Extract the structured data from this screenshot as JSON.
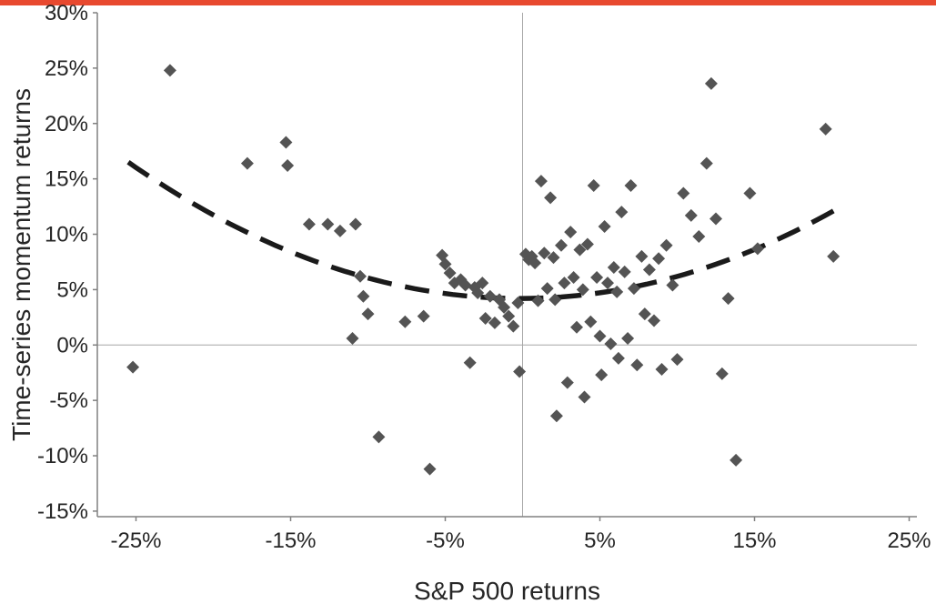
{
  "colors": {
    "accent_bar": "#e8492f",
    "marker": "#545454",
    "trend": "#1a1a1a",
    "axis": "#808080",
    "gridline": "#a6a6a6",
    "text": "#262626"
  },
  "chart_data": {
    "type": "scatter",
    "title": "",
    "xlabel": "S&P 500 returns",
    "ylabel": "Time-series momentum returns",
    "xlim": [
      -27.5,
      25.5
    ],
    "ylim": [
      -15.5,
      30
    ],
    "x_ticks": [
      -25,
      -15,
      -5,
      5,
      15,
      25
    ],
    "y_ticks": [
      30,
      25,
      20,
      15,
      10,
      5,
      0,
      -5,
      -10,
      -15
    ],
    "tick_format": "percent",
    "grid": "zero-lines-only",
    "legend": "none",
    "trend": {
      "type": "quadratic",
      "style": "dashed",
      "coefficients": {
        "a": 0.0192,
        "b": 0.007,
        "c": 4.2
      },
      "x_range": [
        -25.5,
        20.5
      ]
    },
    "points": [
      [
        -25.2,
        -2.0
      ],
      [
        -22.8,
        24.8
      ],
      [
        -17.8,
        16.4
      ],
      [
        -15.3,
        18.3
      ],
      [
        -15.2,
        16.2
      ],
      [
        -13.8,
        10.9
      ],
      [
        -12.6,
        10.9
      ],
      [
        -11.8,
        10.3
      ],
      [
        -11.0,
        0.6
      ],
      [
        -10.8,
        10.9
      ],
      [
        -10.5,
        6.2
      ],
      [
        -10.3,
        4.4
      ],
      [
        -10.0,
        2.8
      ],
      [
        -9.3,
        -8.3
      ],
      [
        -7.6,
        2.1
      ],
      [
        -6.4,
        2.6
      ],
      [
        -6.0,
        -11.2
      ],
      [
        -5.2,
        8.1
      ],
      [
        -5.0,
        7.3
      ],
      [
        -4.7,
        6.5
      ],
      [
        -4.4,
        5.6
      ],
      [
        -4.0,
        5.9
      ],
      [
        -3.7,
        5.4
      ],
      [
        -3.4,
        -1.6
      ],
      [
        -3.1,
        5.2
      ],
      [
        -2.9,
        4.7
      ],
      [
        -2.6,
        5.6
      ],
      [
        -2.4,
        2.4
      ],
      [
        -2.1,
        4.4
      ],
      [
        -1.8,
        2.0
      ],
      [
        -1.5,
        4.1
      ],
      [
        -1.2,
        3.4
      ],
      [
        -0.9,
        2.6
      ],
      [
        -0.6,
        1.7
      ],
      [
        -0.3,
        3.8
      ],
      [
        -0.2,
        -2.4
      ],
      [
        0.2,
        8.2
      ],
      [
        0.4,
        7.7
      ],
      [
        0.6,
        8.0
      ],
      [
        0.8,
        7.4
      ],
      [
        1.0,
        4.0
      ],
      [
        1.2,
        14.8
      ],
      [
        1.4,
        8.3
      ],
      [
        1.6,
        5.1
      ],
      [
        1.8,
        13.3
      ],
      [
        2.0,
        7.9
      ],
      [
        2.1,
        4.1
      ],
      [
        2.2,
        -6.4
      ],
      [
        2.5,
        9.0
      ],
      [
        2.7,
        5.6
      ],
      [
        2.9,
        -3.4
      ],
      [
        3.1,
        10.2
      ],
      [
        3.3,
        6.1
      ],
      [
        3.5,
        1.6
      ],
      [
        3.7,
        8.6
      ],
      [
        3.9,
        5.0
      ],
      [
        4.0,
        -4.7
      ],
      [
        4.2,
        9.1
      ],
      [
        4.4,
        2.1
      ],
      [
        4.6,
        14.4
      ],
      [
        4.8,
        6.1
      ],
      [
        5.0,
        0.8
      ],
      [
        5.1,
        -2.7
      ],
      [
        5.3,
        10.7
      ],
      [
        5.5,
        5.6
      ],
      [
        5.7,
        0.1
      ],
      [
        5.9,
        7.0
      ],
      [
        6.1,
        4.8
      ],
      [
        6.2,
        -1.2
      ],
      [
        6.4,
        12.0
      ],
      [
        6.6,
        6.6
      ],
      [
        6.8,
        0.6
      ],
      [
        7.0,
        14.4
      ],
      [
        7.2,
        5.1
      ],
      [
        7.4,
        -1.8
      ],
      [
        7.7,
        8.0
      ],
      [
        7.9,
        2.8
      ],
      [
        8.2,
        6.8
      ],
      [
        8.5,
        2.2
      ],
      [
        8.8,
        7.8
      ],
      [
        9.0,
        -2.2
      ],
      [
        9.3,
        9.0
      ],
      [
        9.7,
        5.4
      ],
      [
        10.0,
        -1.3
      ],
      [
        10.4,
        13.7
      ],
      [
        10.9,
        11.7
      ],
      [
        11.4,
        9.8
      ],
      [
        11.9,
        16.4
      ],
      [
        12.2,
        23.6
      ],
      [
        12.5,
        11.4
      ],
      [
        12.9,
        -2.6
      ],
      [
        13.3,
        4.2
      ],
      [
        13.8,
        -10.4
      ],
      [
        14.7,
        13.7
      ],
      [
        15.2,
        8.7
      ],
      [
        19.6,
        19.5
      ],
      [
        20.1,
        8.0
      ]
    ]
  }
}
